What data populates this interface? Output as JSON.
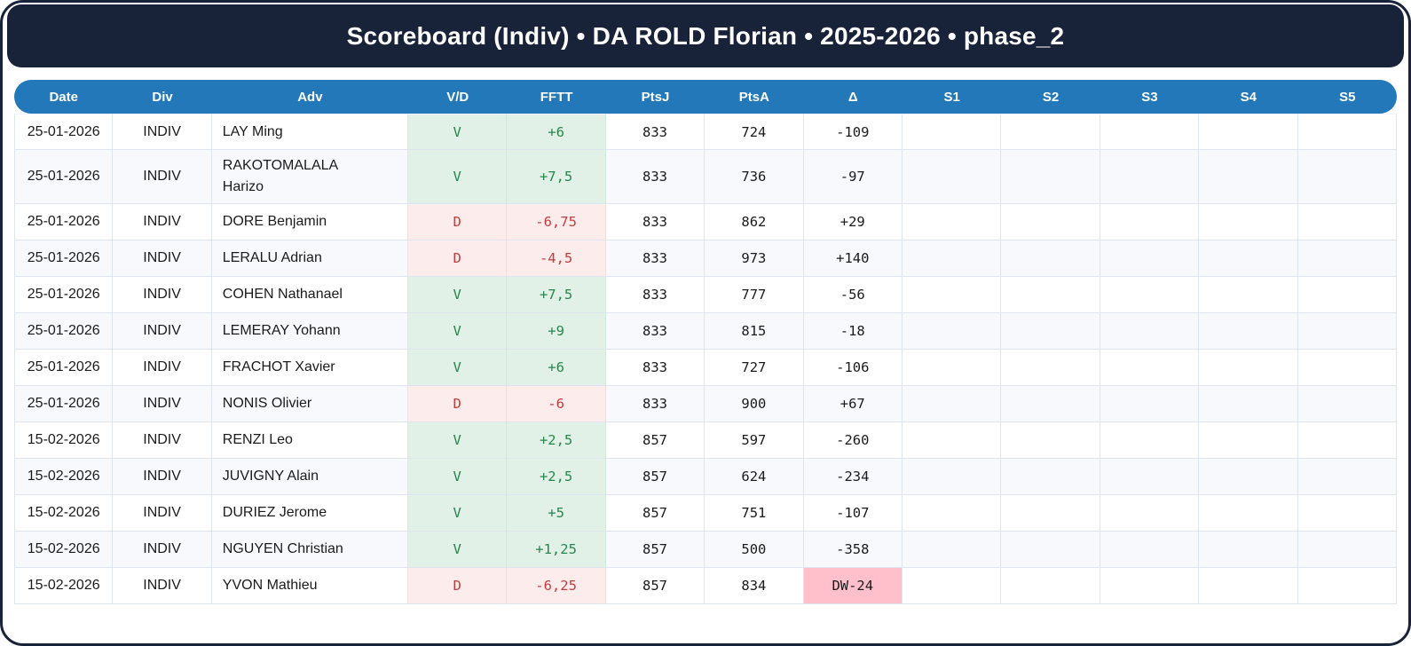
{
  "title": "Scoreboard (Indiv) • DA ROLD Florian • 2025-2026 • phase_2",
  "colors": {
    "frame_navy": "#182238",
    "header_blue": "#2278b8",
    "win_bg": "#e1f1e7",
    "win_text": "#27874b",
    "loss_bg": "#fdecec",
    "loss_text": "#c43d3d",
    "delta_warning_bg": "#ffc0cb",
    "stripe_bg": "#f7f9fd",
    "grid_line": "#dfe5ee"
  },
  "table": {
    "columns": [
      "Date",
      "Div",
      "Adv",
      "V/D",
      "FFTT",
      "PtsJ",
      "PtsA",
      "Δ",
      "S1",
      "S2",
      "S3",
      "S4",
      "S5"
    ],
    "rows": [
      {
        "date": "25-01-2026",
        "div": "INDIV",
        "adv": "LAY Ming",
        "vd": "V",
        "fftt": "+6",
        "ptsj": "833",
        "ptsa": "724",
        "delta": "-109",
        "result": "win"
      },
      {
        "date": "25-01-2026",
        "div": "INDIV",
        "adv": "RAKOTOMALALA Harizo",
        "vd": "V",
        "fftt": "+7,5",
        "ptsj": "833",
        "ptsa": "736",
        "delta": "-97",
        "result": "win"
      },
      {
        "date": "25-01-2026",
        "div": "INDIV",
        "adv": "DORE Benjamin",
        "vd": "D",
        "fftt": "-6,75",
        "ptsj": "833",
        "ptsa": "862",
        "delta": "+29",
        "result": "loss"
      },
      {
        "date": "25-01-2026",
        "div": "INDIV",
        "adv": "LERALU Adrian",
        "vd": "D",
        "fftt": "-4,5",
        "ptsj": "833",
        "ptsa": "973",
        "delta": "+140",
        "result": "loss"
      },
      {
        "date": "25-01-2026",
        "div": "INDIV",
        "adv": "COHEN Nathanael",
        "vd": "V",
        "fftt": "+7,5",
        "ptsj": "833",
        "ptsa": "777",
        "delta": "-56",
        "result": "win"
      },
      {
        "date": "25-01-2026",
        "div": "INDIV",
        "adv": "LEMERAY Yohann",
        "vd": "V",
        "fftt": "+9",
        "ptsj": "833",
        "ptsa": "815",
        "delta": "-18",
        "result": "win"
      },
      {
        "date": "25-01-2026",
        "div": "INDIV",
        "adv": "FRACHOT Xavier",
        "vd": "V",
        "fftt": "+6",
        "ptsj": "833",
        "ptsa": "727",
        "delta": "-106",
        "result": "win"
      },
      {
        "date": "25-01-2026",
        "div": "INDIV",
        "adv": "NONIS Olivier",
        "vd": "D",
        "fftt": "-6",
        "ptsj": "833",
        "ptsa": "900",
        "delta": "+67",
        "result": "loss"
      },
      {
        "date": "15-02-2026",
        "div": "INDIV",
        "adv": "RENZI Leo",
        "vd": "V",
        "fftt": "+2,5",
        "ptsj": "857",
        "ptsa": "597",
        "delta": "-260",
        "result": "win"
      },
      {
        "date": "15-02-2026",
        "div": "INDIV",
        "adv": "JUVIGNY Alain",
        "vd": "V",
        "fftt": "+2,5",
        "ptsj": "857",
        "ptsa": "624",
        "delta": "-234",
        "result": "win"
      },
      {
        "date": "15-02-2026",
        "div": "INDIV",
        "adv": "DURIEZ Jerome",
        "vd": "V",
        "fftt": "+5",
        "ptsj": "857",
        "ptsa": "751",
        "delta": "-107",
        "result": "win"
      },
      {
        "date": "15-02-2026",
        "div": "INDIV",
        "adv": "NGUYEN Christian",
        "vd": "V",
        "fftt": "+1,25",
        "ptsj": "857",
        "ptsa": "500",
        "delta": "-358",
        "result": "win"
      },
      {
        "date": "15-02-2026",
        "div": "INDIV",
        "adv": "YVON Mathieu",
        "vd": "D",
        "fftt": "-6,25",
        "ptsj": "857",
        "ptsa": "834",
        "delta": "DW-24",
        "result": "loss",
        "delta_highlight": true
      }
    ]
  }
}
